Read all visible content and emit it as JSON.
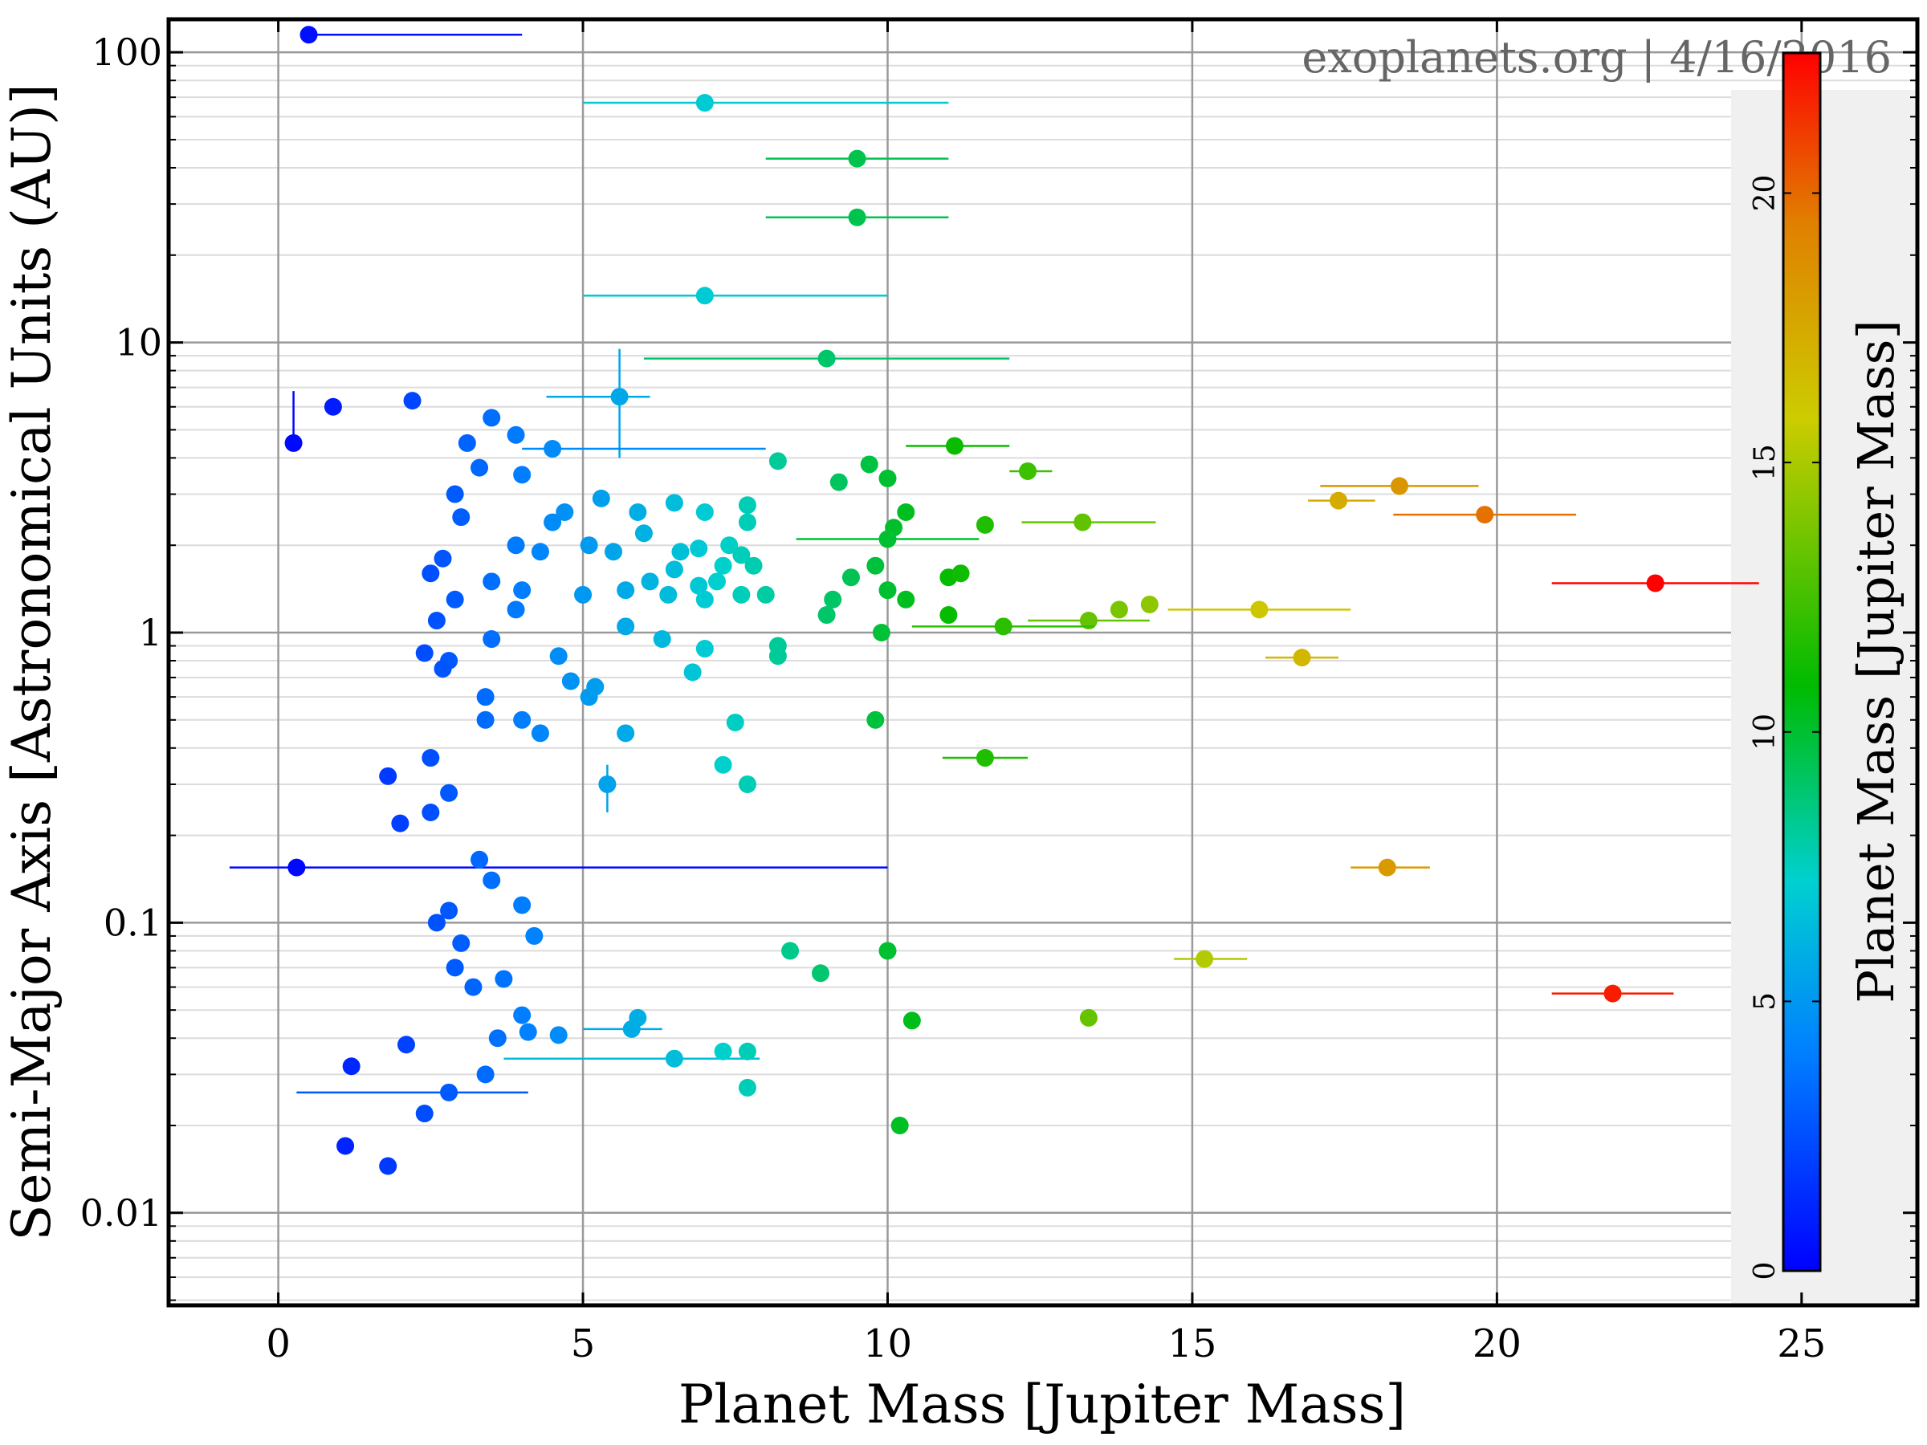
{
  "chart_data": {
    "type": "scatter",
    "title": "",
    "watermark": "exoplanets.org | 4/16/2016",
    "xlabel": "Planet Mass [Jupiter Mass]",
    "ylabel": "Semi-Major Axis [Astronomical Units (AU)]",
    "xlim": [
      -1.8,
      26.9
    ],
    "ylim": [
      0.0048,
      130
    ],
    "yscale": "log",
    "x_ticks": [
      0,
      5,
      10,
      15,
      20,
      25
    ],
    "x_tick_labels": [
      "0",
      "5",
      "10",
      "15",
      "20",
      "25"
    ],
    "y_ticks": [
      0.01,
      0.1,
      1,
      10,
      100
    ],
    "y_tick_labels": [
      "0.01",
      "0.1",
      "1",
      "10",
      "100"
    ],
    "grid": true,
    "colorbar": {
      "label": "Planet Mass [Jupiter Mass]",
      "range": [
        0,
        22.6
      ],
      "ticks": [
        0,
        5,
        10,
        15,
        20
      ],
      "tick_labels": [
        "0",
        "5",
        "10",
        "15",
        "20"
      ],
      "colormap": [
        "#0000ff",
        "#0080ff",
        "#00d0d0",
        "#00bb00",
        "#cccc00",
        "#e08000",
        "#ff0000"
      ]
    },
    "series": [
      {
        "points": [
          {
            "x": 0.5,
            "y": 115,
            "xerr_lo": 0,
            "xerr_hi": 3.5
          },
          {
            "x": 7.0,
            "y": 67,
            "xerr_lo": 2.0,
            "xerr_hi": 4.0
          },
          {
            "x": 9.5,
            "y": 43,
            "xerr_lo": 1.5,
            "xerr_hi": 1.5
          },
          {
            "x": 9.5,
            "y": 27,
            "xerr_lo": 1.5,
            "xerr_hi": 1.5
          },
          {
            "x": 7.0,
            "y": 14.5,
            "xerr_lo": 2.0,
            "xerr_hi": 3.0
          },
          {
            "x": 9.0,
            "y": 8.8,
            "xerr_lo": 3.0,
            "xerr_hi": 3.0
          },
          {
            "x": 5.6,
            "y": 6.5,
            "xerr_lo": 1.2,
            "xerr_hi": 0.5,
            "yerr_lo": 2.5,
            "yerr_hi": 3.0
          },
          {
            "x": 0.25,
            "y": 4.5,
            "yerr_lo": 0,
            "yerr_hi": 2.3
          },
          {
            "x": 0.9,
            "y": 6.0
          },
          {
            "x": 2.2,
            "y": 6.3
          },
          {
            "x": 3.5,
            "y": 5.5
          },
          {
            "x": 4.5,
            "y": 4.3,
            "xerr_lo": 0.5,
            "xerr_hi": 3.5
          },
          {
            "x": 11.1,
            "y": 4.4,
            "xerr_lo": 0.8,
            "xerr_hi": 0.9
          },
          {
            "x": 8.2,
            "y": 3.9
          },
          {
            "x": 9.7,
            "y": 3.8
          },
          {
            "x": 12.3,
            "y": 3.6,
            "xerr_lo": 0.3,
            "xerr_hi": 0.4
          },
          {
            "x": 9.2,
            "y": 3.3
          },
          {
            "x": 10.0,
            "y": 3.4
          },
          {
            "x": 18.4,
            "y": 3.2,
            "xerr_lo": 1.3,
            "xerr_hi": 1.3
          },
          {
            "x": 17.4,
            "y": 2.85,
            "xerr_lo": 0.5,
            "xerr_hi": 0.6
          },
          {
            "x": 19.8,
            "y": 2.55,
            "xerr_lo": 1.5,
            "xerr_hi": 1.5
          },
          {
            "x": 5.3,
            "y": 2.9
          },
          {
            "x": 6.5,
            "y": 2.8
          },
          {
            "x": 7.7,
            "y": 2.75
          },
          {
            "x": 5.9,
            "y": 2.6
          },
          {
            "x": 7.0,
            "y": 2.6
          },
          {
            "x": 10.3,
            "y": 2.6
          },
          {
            "x": 4.7,
            "y": 2.6
          },
          {
            "x": 7.7,
            "y": 2.4
          },
          {
            "x": 10.1,
            "y": 2.3
          },
          {
            "x": 11.6,
            "y": 2.35
          },
          {
            "x": 13.2,
            "y": 2.4,
            "xerr_lo": 1.0,
            "xerr_hi": 1.2
          },
          {
            "x": 10.0,
            "y": 2.1,
            "xerr_lo": 1.5,
            "xerr_hi": 1.5
          },
          {
            "x": 5.1,
            "y": 2.0
          },
          {
            "x": 5.5,
            "y": 1.9
          },
          {
            "x": 6.0,
            "y": 2.2
          },
          {
            "x": 6.6,
            "y": 1.9
          },
          {
            "x": 7.4,
            "y": 2.0
          },
          {
            "x": 6.9,
            "y": 1.95
          },
          {
            "x": 7.6,
            "y": 1.85
          },
          {
            "x": 9.8,
            "y": 1.7
          },
          {
            "x": 10.0,
            "y": 1.4
          },
          {
            "x": 9.4,
            "y": 1.55
          },
          {
            "x": 11.0,
            "y": 1.55
          },
          {
            "x": 11.2,
            "y": 1.6
          },
          {
            "x": 22.6,
            "y": 1.48,
            "xerr_lo": 1.7,
            "xerr_hi": 1.7
          },
          {
            "x": 6.5,
            "y": 1.65
          },
          {
            "x": 7.3,
            "y": 1.7
          },
          {
            "x": 7.8,
            "y": 1.7
          },
          {
            "x": 6.1,
            "y": 1.5
          },
          {
            "x": 6.9,
            "y": 1.45
          },
          {
            "x": 7.2,
            "y": 1.5
          },
          {
            "x": 7.6,
            "y": 1.35
          },
          {
            "x": 8.0,
            "y": 1.35
          },
          {
            "x": 5.0,
            "y": 1.35
          },
          {
            "x": 5.7,
            "y": 1.4
          },
          {
            "x": 6.4,
            "y": 1.35
          },
          {
            "x": 7.0,
            "y": 1.3
          },
          {
            "x": 9.1,
            "y": 1.3
          },
          {
            "x": 10.3,
            "y": 1.3
          },
          {
            "x": 14.3,
            "y": 1.25
          },
          {
            "x": 13.8,
            "y": 1.2
          },
          {
            "x": 16.1,
            "y": 1.2,
            "xerr_lo": 1.5,
            "xerr_hi": 1.5
          },
          {
            "x": 13.3,
            "y": 1.1,
            "xerr_lo": 1.0,
            "xerr_hi": 1.0
          },
          {
            "x": 9.0,
            "y": 1.15
          },
          {
            "x": 11.0,
            "y": 1.15
          },
          {
            "x": 11.9,
            "y": 1.05,
            "xerr_lo": 1.5,
            "xerr_hi": 1.5
          },
          {
            "x": 9.9,
            "y": 1.0
          },
          {
            "x": 5.7,
            "y": 1.05
          },
          {
            "x": 6.3,
            "y": 0.95
          },
          {
            "x": 7.0,
            "y": 0.88
          },
          {
            "x": 8.2,
            "y": 0.9
          },
          {
            "x": 8.2,
            "y": 0.83
          },
          {
            "x": 6.8,
            "y": 0.73
          },
          {
            "x": 16.8,
            "y": 0.82,
            "xerr_lo": 0.6,
            "xerr_hi": 0.6
          },
          {
            "x": 4.8,
            "y": 0.68
          },
          {
            "x": 5.1,
            "y": 0.6
          },
          {
            "x": 5.2,
            "y": 0.65
          },
          {
            "x": 9.8,
            "y": 0.5
          },
          {
            "x": 7.5,
            "y": 0.49
          },
          {
            "x": 5.7,
            "y": 0.45
          },
          {
            "x": 11.6,
            "y": 0.37,
            "xerr_lo": 0.7,
            "xerr_hi": 0.7
          },
          {
            "x": 7.3,
            "y": 0.35
          },
          {
            "x": 7.7,
            "y": 0.3
          },
          {
            "x": 5.4,
            "y": 0.3,
            "yerr_lo": 0.06,
            "yerr_hi": 0.05
          },
          {
            "x": 18.2,
            "y": 0.155,
            "xerr_lo": 0.6,
            "xerr_hi": 0.7
          },
          {
            "x": 0.3,
            "y": 0.155,
            "xerr_lo": 1.1,
            "xerr_hi": 9.7
          },
          {
            "x": 15.2,
            "y": 0.075,
            "xerr_lo": 0.5,
            "xerr_hi": 0.7
          },
          {
            "x": 8.4,
            "y": 0.08
          },
          {
            "x": 10.0,
            "y": 0.08
          },
          {
            "x": 8.9,
            "y": 0.067
          },
          {
            "x": 21.9,
            "y": 0.057,
            "xerr_lo": 1.0,
            "xerr_hi": 1.0
          },
          {
            "x": 13.3,
            "y": 0.047
          },
          {
            "x": 10.4,
            "y": 0.046
          },
          {
            "x": 5.8,
            "y": 0.043,
            "xerr_lo": 0.8,
            "xerr_hi": 0.5
          },
          {
            "x": 5.9,
            "y": 0.047
          },
          {
            "x": 6.5,
            "y": 0.034,
            "xerr_lo": 2.8,
            "xerr_hi": 1.4
          },
          {
            "x": 7.3,
            "y": 0.036
          },
          {
            "x": 7.7,
            "y": 0.036
          },
          {
            "x": 7.7,
            "y": 0.027
          },
          {
            "x": 10.2,
            "y": 0.02
          },
          {
            "x": 4.6,
            "y": 0.041
          },
          {
            "x": 4.2,
            "y": 0.09
          },
          {
            "x": 4.0,
            "y": 0.115
          },
          {
            "x": 3.5,
            "y": 0.14
          },
          {
            "x": 3.3,
            "y": 0.165
          },
          {
            "x": 3.2,
            "y": 0.06
          },
          {
            "x": 3.0,
            "y": 0.085
          },
          {
            "x": 2.8,
            "y": 0.11
          },
          {
            "x": 2.6,
            "y": 0.1
          },
          {
            "x": 2.9,
            "y": 0.07
          },
          {
            "x": 3.6,
            "y": 0.04
          },
          {
            "x": 4.0,
            "y": 0.048
          },
          {
            "x": 4.1,
            "y": 0.042
          },
          {
            "x": 3.7,
            "y": 0.064
          },
          {
            "x": 2.8,
            "y": 0.28
          },
          {
            "x": 2.5,
            "y": 0.37
          },
          {
            "x": 2.5,
            "y": 0.24
          },
          {
            "x": 2.0,
            "y": 0.22
          },
          {
            "x": 1.8,
            "y": 0.32
          },
          {
            "x": 1.1,
            "y": 0.017
          },
          {
            "x": 1.8,
            "y": 0.0145
          },
          {
            "x": 1.2,
            "y": 0.032
          },
          {
            "x": 2.1,
            "y": 0.038
          },
          {
            "x": 2.4,
            "y": 0.022
          },
          {
            "x": 3.4,
            "y": 0.03
          },
          {
            "x": 2.8,
            "y": 0.026,
            "xerr_lo": 2.5,
            "xerr_hi": 1.3
          },
          {
            "x": 4.0,
            "y": 0.5
          },
          {
            "x": 4.3,
            "y": 0.45
          },
          {
            "x": 3.4,
            "y": 0.6
          },
          {
            "x": 3.4,
            "y": 0.5
          },
          {
            "x": 4.6,
            "y": 0.83
          },
          {
            "x": 3.5,
            "y": 0.95
          },
          {
            "x": 3.9,
            "y": 1.2
          },
          {
            "x": 4.0,
            "y": 1.4
          },
          {
            "x": 3.5,
            "y": 1.5
          },
          {
            "x": 4.5,
            "y": 2.4
          },
          {
            "x": 4.3,
            "y": 1.9
          },
          {
            "x": 3.9,
            "y": 2.0
          },
          {
            "x": 3.0,
            "y": 2.5
          },
          {
            "x": 2.9,
            "y": 3.0
          },
          {
            "x": 3.3,
            "y": 3.7
          },
          {
            "x": 3.1,
            "y": 4.5
          },
          {
            "x": 3.9,
            "y": 4.8
          },
          {
            "x": 4.0,
            "y": 3.5
          },
          {
            "x": 2.7,
            "y": 1.8
          },
          {
            "x": 2.5,
            "y": 1.6
          },
          {
            "x": 2.6,
            "y": 1.1
          },
          {
            "x": 2.9,
            "y": 1.3
          },
          {
            "x": 2.4,
            "y": 0.85
          },
          {
            "x": 2.8,
            "y": 0.8
          },
          {
            "x": 2.7,
            "y": 0.75
          }
        ]
      }
    ]
  }
}
